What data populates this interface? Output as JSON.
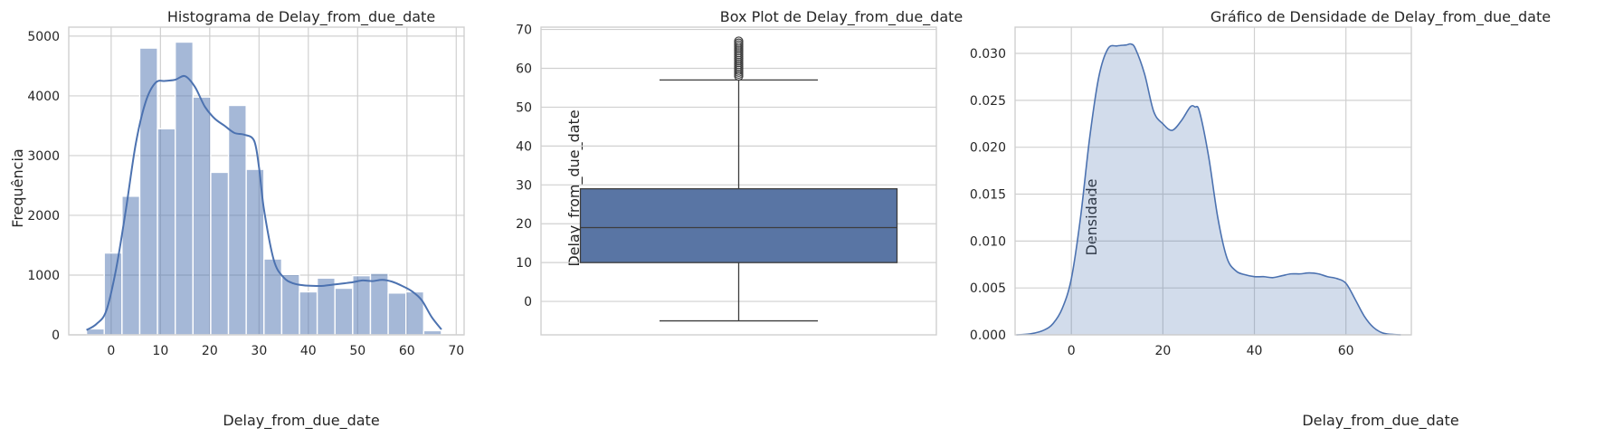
{
  "chart_data": [
    {
      "type": "bar",
      "title": "Histograma de Delay_from_due_date",
      "xlabel": "Delay_from_due_date",
      "ylabel": "Frequência",
      "xlim": [
        -8.6,
        71.6
      ],
      "ylim": [
        0,
        5150
      ],
      "xticks": [
        0,
        10,
        20,
        30,
        40,
        50,
        60,
        70
      ],
      "yticks": [
        0,
        1000,
        2000,
        3000,
        4000,
        5000
      ],
      "grid": true,
      "bar_color": "#4c72b0",
      "bins": [
        {
          "x0": -5,
          "x1": -1.4,
          "count": 100
        },
        {
          "x0": -1.4,
          "x1": 2.2,
          "count": 1370
        },
        {
          "x0": 2.2,
          "x1": 5.8,
          "count": 2320
        },
        {
          "x0": 5.8,
          "x1": 9.4,
          "count": 4800
        },
        {
          "x0": 9.4,
          "x1": 13.0,
          "count": 3450
        },
        {
          "x0": 13.0,
          "x1": 16.6,
          "count": 4900
        },
        {
          "x0": 16.6,
          "x1": 20.2,
          "count": 3980
        },
        {
          "x0": 20.2,
          "x1": 23.8,
          "count": 2720
        },
        {
          "x0": 23.8,
          "x1": 27.4,
          "count": 3840
        },
        {
          "x0": 27.4,
          "x1": 31.0,
          "count": 2770
        },
        {
          "x0": 31.0,
          "x1": 34.6,
          "count": 1270
        },
        {
          "x0": 34.6,
          "x1": 38.2,
          "count": 1010
        },
        {
          "x0": 38.2,
          "x1": 41.8,
          "count": 720
        },
        {
          "x0": 41.8,
          "x1": 45.4,
          "count": 950
        },
        {
          "x0": 45.4,
          "x1": 49.0,
          "count": 780
        },
        {
          "x0": 49.0,
          "x1": 52.6,
          "count": 990
        },
        {
          "x0": 52.6,
          "x1": 56.2,
          "count": 1030
        },
        {
          "x0": 56.2,
          "x1": 59.8,
          "count": 700
        },
        {
          "x0": 59.8,
          "x1": 63.4,
          "count": 720
        },
        {
          "x0": 63.4,
          "x1": 67.0,
          "count": 70
        }
      ],
      "kde": {
        "x": [
          -5,
          -3,
          -1,
          1,
          3,
          5,
          7,
          9,
          11,
          13,
          15,
          17,
          19,
          21,
          23,
          25,
          27,
          29,
          30,
          31,
          33,
          35,
          37,
          39,
          41,
          43,
          45,
          47,
          49,
          51,
          53,
          55,
          57,
          59,
          61,
          63,
          65,
          67
        ],
        "y": [
          80,
          180,
          400,
          1100,
          2100,
          3200,
          3900,
          4220,
          4250,
          4270,
          4330,
          4150,
          3820,
          3620,
          3500,
          3380,
          3350,
          3250,
          2800,
          2100,
          1250,
          960,
          860,
          830,
          820,
          820,
          840,
          860,
          880,
          910,
          900,
          920,
          890,
          820,
          730,
          580,
          300,
          90
        ]
      }
    },
    {
      "type": "box",
      "title": "Box Plot de Delay_from_due_date",
      "xlabel": "",
      "ylabel": "Delay_from_due_date",
      "ylim": [
        -8.6,
        70.6
      ],
      "yticks": [
        0,
        10,
        20,
        30,
        40,
        50,
        60,
        70
      ],
      "grid": true,
      "box_color": "#5975a4",
      "whisker_low": -5,
      "q1": 10,
      "median": 19,
      "q3": 29,
      "whisker_high": 57,
      "outliers": [
        58,
        58.5,
        59,
        59.5,
        60,
        60.5,
        61,
        61.5,
        62,
        62.5,
        63,
        63.5,
        64,
        64.5,
        65,
        65.5,
        66,
        66.5,
        67
      ]
    },
    {
      "type": "area",
      "title": "Gráfico de Densidade de Delay_from_due_date",
      "xlabel": "Delay_from_due_date",
      "ylabel": "Densidade",
      "xlim": [
        -12.3,
        74.3
      ],
      "ylim": [
        0,
        0.0328
      ],
      "xticks": [
        0,
        20,
        40,
        60
      ],
      "yticks": [
        0.0,
        0.005,
        0.01,
        0.015,
        0.02,
        0.025,
        0.03
      ],
      "ytick_labels": [
        "0.000",
        "0.005",
        "0.010",
        "0.015",
        "0.020",
        "0.025",
        "0.030"
      ],
      "grid": true,
      "fill_color": "#4c72b0",
      "x": [
        -12,
        -9,
        -6,
        -4,
        -2,
        0,
        2,
        4,
        6,
        8,
        10,
        12,
        13,
        14,
        16,
        18,
        20,
        22,
        24,
        26,
        27,
        28,
        30,
        32,
        34,
        36,
        38,
        40,
        42,
        44,
        46,
        48,
        50,
        52,
        54,
        56,
        58,
        60,
        62,
        64,
        66,
        68,
        70,
        72
      ],
      "y": [
        0.0,
        0.0001,
        0.0005,
        0.0012,
        0.0028,
        0.006,
        0.0125,
        0.021,
        0.0275,
        0.0305,
        0.0308,
        0.0309,
        0.031,
        0.0305,
        0.0278,
        0.0238,
        0.0225,
        0.0218,
        0.0228,
        0.0243,
        0.0243,
        0.0238,
        0.019,
        0.0125,
        0.0082,
        0.0068,
        0.0064,
        0.0062,
        0.0062,
        0.0061,
        0.0063,
        0.0065,
        0.0065,
        0.0066,
        0.0065,
        0.0062,
        0.006,
        0.0055,
        0.0038,
        0.002,
        0.0008,
        0.0002,
        5e-05,
        0.0
      ]
    }
  ]
}
